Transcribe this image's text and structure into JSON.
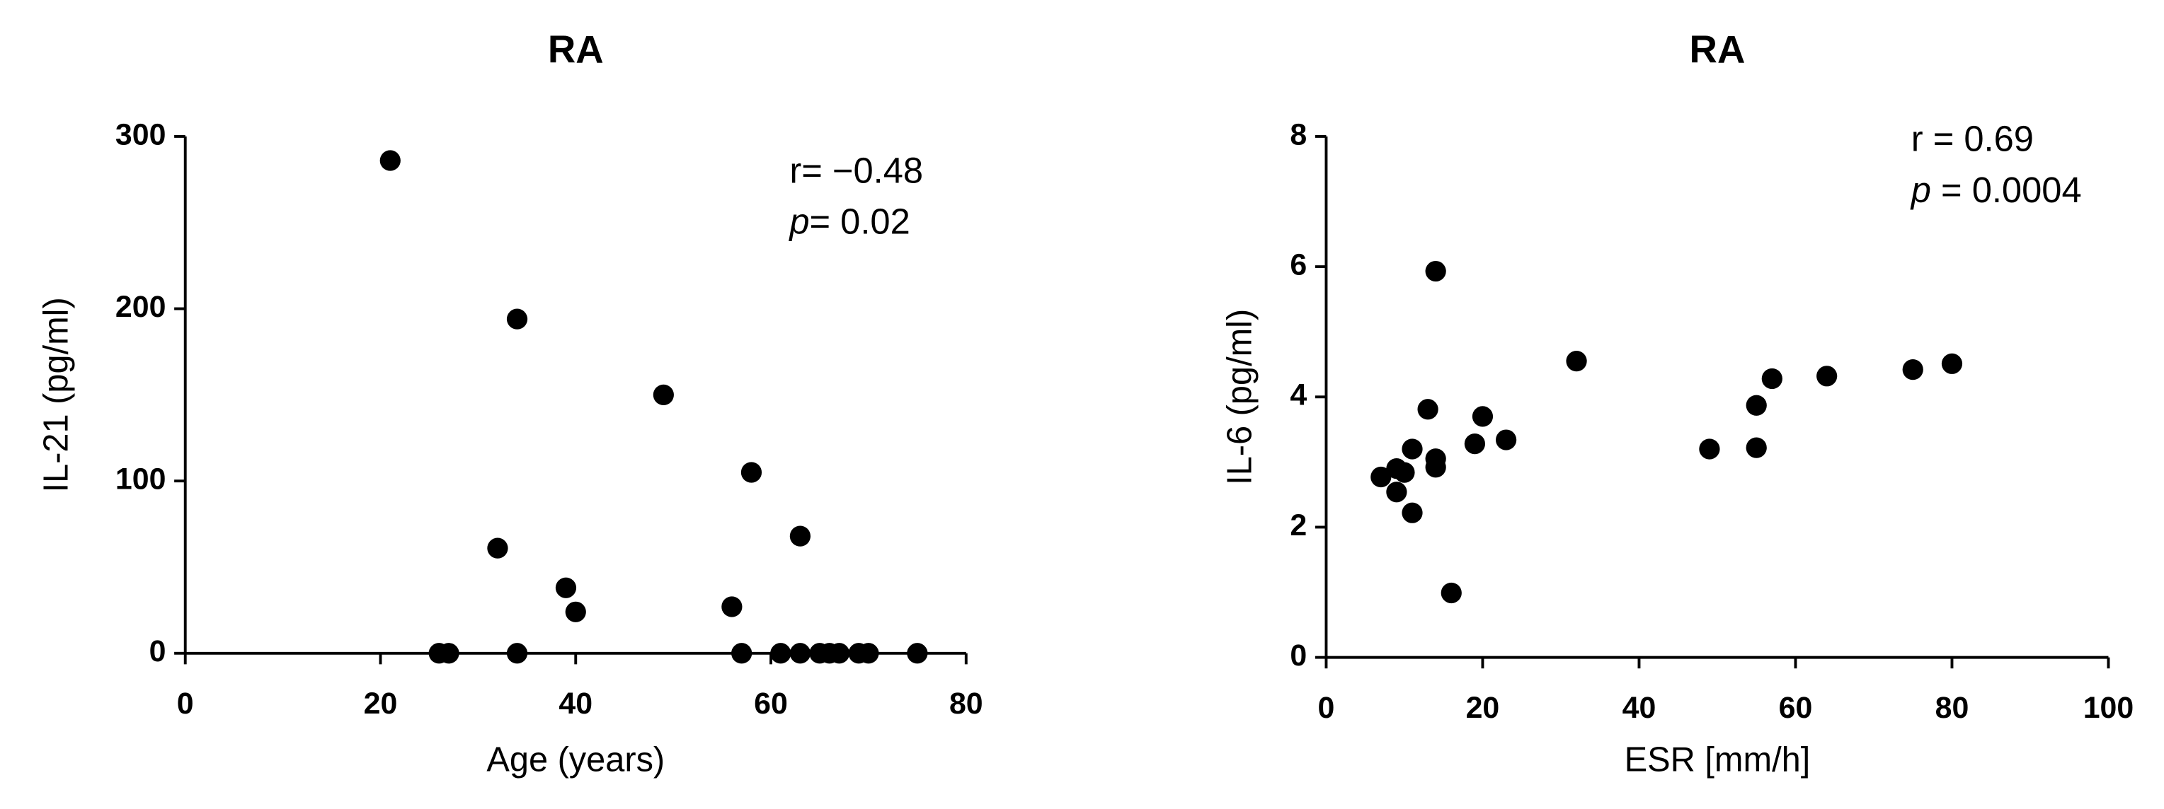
{
  "chart_data": [
    {
      "type": "scatter",
      "title": "RA",
      "x_label": "Age (years)",
      "y_label": "IL-21 (pg/ml)",
      "color": "#000000",
      "x": [
        21,
        34,
        49,
        58,
        32,
        63,
        39,
        40,
        56,
        26,
        27,
        34,
        57,
        61,
        63,
        65,
        66,
        67,
        69,
        70,
        75
      ],
      "values": [
        286,
        194,
        150,
        105,
        61,
        68,
        38,
        24,
        27,
        0,
        0,
        0,
        0,
        0,
        0,
        0,
        0,
        0,
        0,
        0,
        0
      ],
      "xlim": [
        0,
        80
      ],
      "xticks": [
        0,
        20,
        40,
        60,
        80
      ],
      "ylim": [
        0,
        300
      ],
      "yticks": [
        0,
        100,
        200,
        300
      ],
      "annotations": [
        {
          "text": "r= −0.48"
        },
        {
          "italic": "p",
          "text": "= 0.02"
        }
      ]
    },
    {
      "type": "scatter",
      "title": "RA",
      "x_label": "ESR [mm/h]",
      "y_label": "IL-6 (pg/ml)",
      "color": "#000000",
      "x": [
        7,
        9,
        9,
        10,
        11,
        11,
        13,
        14,
        14,
        14,
        16,
        19,
        20,
        23,
        32,
        49,
        55,
        55,
        57,
        64,
        75,
        80
      ],
      "values": [
        2.77,
        2.9,
        2.54,
        2.84,
        3.2,
        2.22,
        3.81,
        5.93,
        3.05,
        2.92,
        0.99,
        3.28,
        3.7,
        3.34,
        4.55,
        3.2,
        3.87,
        3.22,
        4.28,
        4.32,
        4.42,
        4.51
      ],
      "xlim": [
        0,
        100
      ],
      "xticks": [
        0,
        20,
        40,
        60,
        80,
        100
      ],
      "ylim": [
        0,
        8
      ],
      "yticks": [
        0,
        2,
        4,
        6,
        8
      ],
      "annotations": [
        {
          "text": "r = 0.69"
        },
        {
          "italic": "p",
          "text": " = 0.0004"
        }
      ]
    }
  ]
}
